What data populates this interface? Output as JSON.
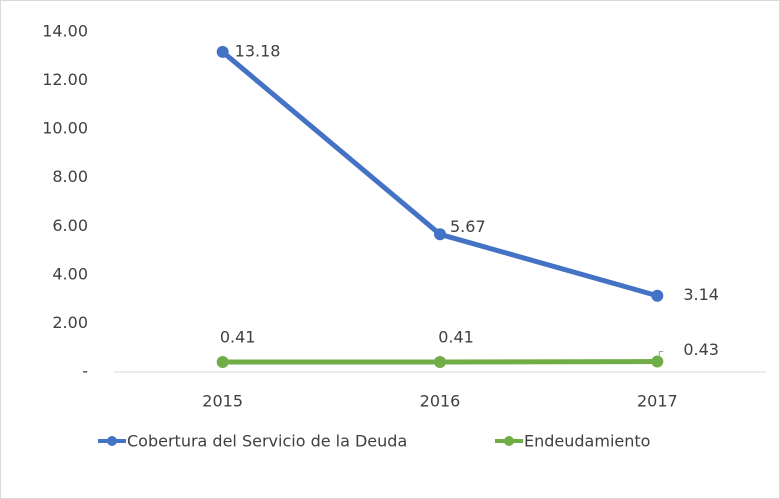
{
  "chart_data": {
    "type": "line",
    "categories": [
      "2015",
      "2016",
      "2017"
    ],
    "series": [
      {
        "name": "Cobertura del Servicio de la Deuda",
        "color": "#4472c4",
        "values": [
          13.18,
          5.67,
          3.14
        ]
      },
      {
        "name": "Endeudamiento",
        "color": "#70ad47",
        "values": [
          0.41,
          0.41,
          0.43
        ]
      }
    ],
    "ylim": [
      0,
      14
    ],
    "yticks": [
      {
        "value": 0,
        "label": "-"
      },
      {
        "value": 2,
        "label": "2.00"
      },
      {
        "value": 4,
        "label": "4.00"
      },
      {
        "value": 6,
        "label": "6.00"
      },
      {
        "value": 8,
        "label": "8.00"
      },
      {
        "value": 10,
        "label": "10.00"
      },
      {
        "value": 12,
        "label": "12.00"
      },
      {
        "value": 14,
        "label": "14.00"
      }
    ],
    "grid": false,
    "legend": "bottom"
  }
}
